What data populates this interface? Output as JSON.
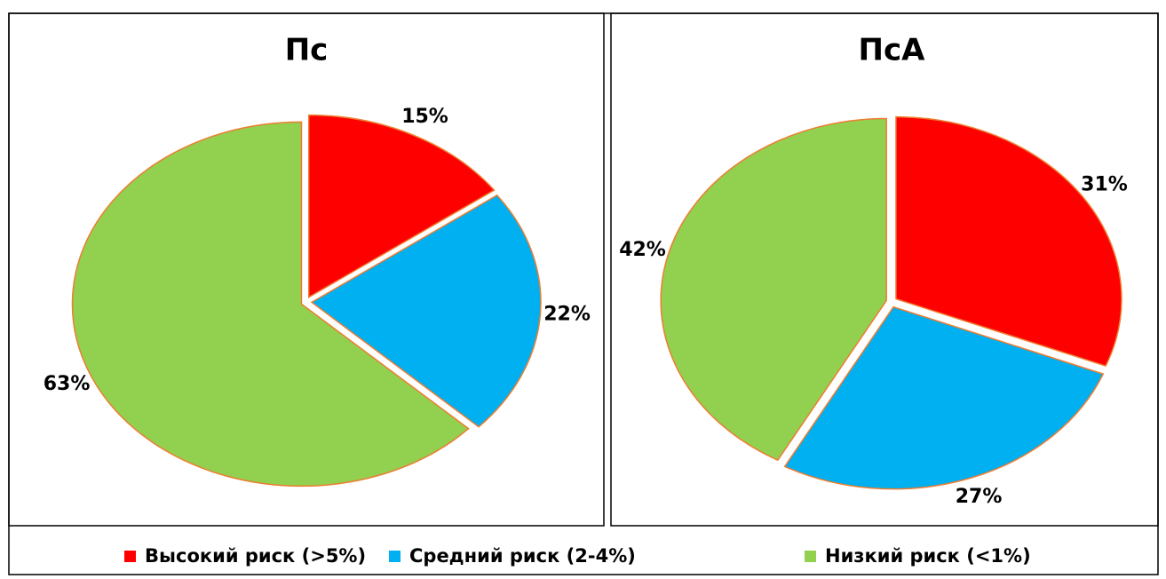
{
  "chart_data": [
    {
      "type": "pie",
      "title": "Пс",
      "values": [
        15,
        22,
        63
      ],
      "value_labels": [
        "15%",
        "22%",
        "63%"
      ]
    },
    {
      "type": "pie",
      "title": "ПсА",
      "values": [
        31,
        27,
        42
      ],
      "value_labels": [
        "31%",
        "27%",
        "42%"
      ]
    }
  ],
  "legend": {
    "categories": [
      "Высокий риск (>5%)",
      "Средний риск (2-4%)",
      "Низкий риск (<1%)"
    ],
    "colors": [
      "#ff0000",
      "#00b0f0",
      "#92d050"
    ]
  }
}
